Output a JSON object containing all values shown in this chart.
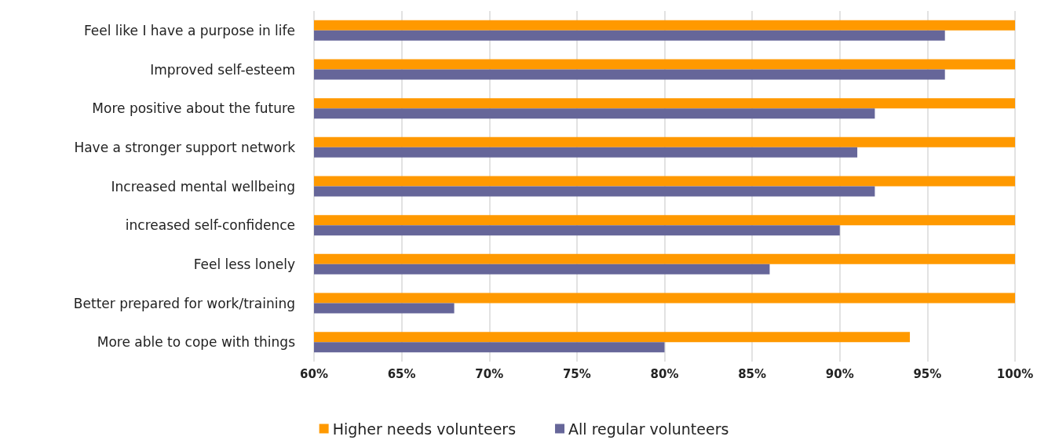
{
  "chart_data": {
    "type": "bar",
    "orientation": "horizontal",
    "categories": [
      "Feel like I have a purpose in life",
      "Improved self-esteem",
      "More positive about the future",
      "Have a stronger support network",
      "Increased mental wellbeing",
      "increased self-confidence",
      "Feel less lonely",
      "Better prepared for work/training",
      "More able to cope with things"
    ],
    "series": [
      {
        "name": "Higher needs volunteers",
        "color": "#ff9900",
        "values": [
          100,
          100,
          100,
          100,
          100,
          100,
          100,
          100,
          94
        ]
      },
      {
        "name": "All regular volunteers",
        "color": "#666699",
        "values": [
          96,
          96,
          92,
          91,
          92,
          90,
          86,
          68,
          80
        ]
      }
    ],
    "xlim": [
      60,
      100
    ],
    "xticks": [
      {
        "value": 60,
        "label": "60%"
      },
      {
        "value": 65,
        "label": "65%"
      },
      {
        "value": 70,
        "label": "70%"
      },
      {
        "value": 75,
        "label": "75%"
      },
      {
        "value": 80,
        "label": "80%"
      },
      {
        "value": 85,
        "label": "85%"
      },
      {
        "value": 90,
        "label": "90%"
      },
      {
        "value": 95,
        "label": "95%"
      },
      {
        "value": 100,
        "label": "100%"
      }
    ],
    "grid": "x",
    "legend": "bottom"
  }
}
